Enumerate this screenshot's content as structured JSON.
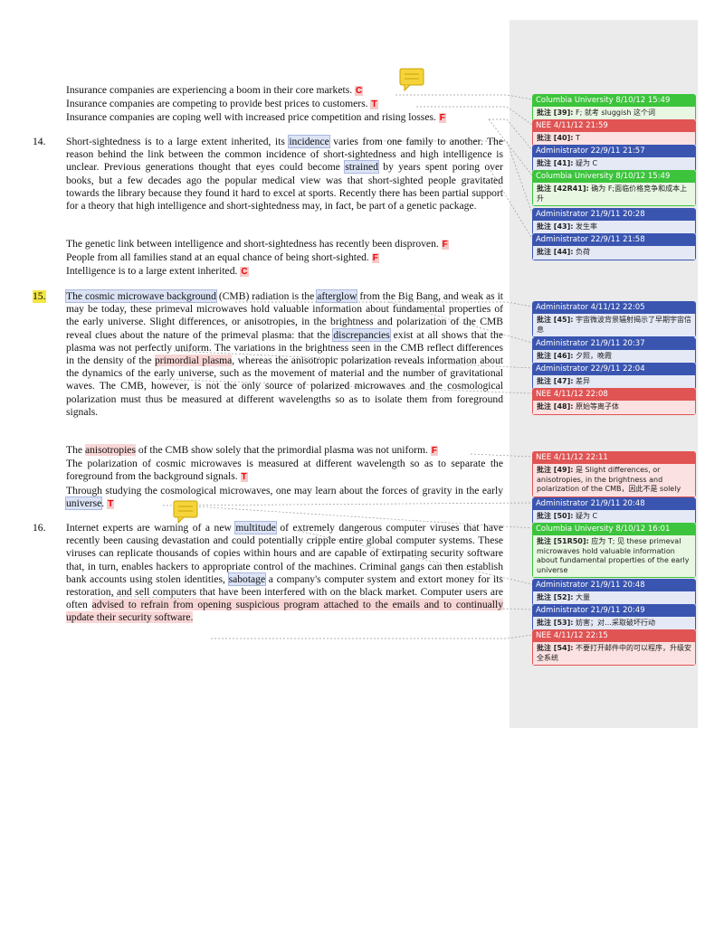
{
  "blocks": [
    {
      "options": [
        {
          "text": [
            "Insurance companies are experiencing a boom in their core markets."
          ],
          "mark": "C"
        },
        {
          "text": [
            "Insurance companies are competing to provide best prices to customers."
          ],
          "mark": "T"
        },
        {
          "text": [
            "Insurance companies are coping well with increased price competition and rising losses."
          ],
          "mark": "F"
        }
      ]
    },
    {
      "number": "14.",
      "passage": [
        "Short-sightedness is to a large extent inherited, its ",
        "incidence",
        " varies from one family to another. The reason behind the link between the common incidence of short-sightedness and high intelligence is unclear. Previous generations thought that eyes could become ",
        "strained",
        " by years spent poring over books, but a few decades ago the popular medical view was that short-sighted people gravitated towards the library because they found it hard to excel at sports. Recently there has been partial support for a theory that high intelligence and short-sightedness may, in fact, be part of a genetic package."
      ],
      "options": [
        {
          "text": [
            "The genetic link between intelligence and short-sightedness has recently been disproven."
          ],
          "mark": "F"
        },
        {
          "text": [
            "People from all families stand at an equal chance of being short-sighted."
          ],
          "mark": "F"
        },
        {
          "text": [
            "Intelligence is to a large extent inherited."
          ],
          "mark": "C"
        }
      ]
    },
    {
      "number": "15.",
      "passage": [
        "The cosmic microwave background",
        " (CMB) radiation is the ",
        "afterglow",
        " from the Big Bang, and weak as it may be today, these primeval microwaves hold valuable information about fundamental properties of the early universe. Slight differences, or anisotropies, in the brightness and polarization of the CMB reveal clues about the nature of the primeval plasma: that the ",
        "discrepancies",
        " exist at all shows that the plasma was not perfectly uniform. The variations in the brightness seen in the CMB reflect differences in the density of the ",
        "primordial plasma",
        ", whereas the anisotropic polarization reveals information about the dynamics of the early universe, such as the movement of material and the number of gravitational waves. The CMB, however, is not the only source of polarized microwaves and the cosmological polarization must thus be measured at different wavelengths so as to isolate them from foreground signals."
      ],
      "options": [
        {
          "text": [
            "The ",
            "anisotropies",
            " of the CMB show solely that the primordial plasma was not uniform."
          ],
          "mark": "F"
        },
        {
          "text": [
            "The polarization of cosmic microwaves is measured at different wavelength so as to separate the foreground from the background signals."
          ],
          "mark": "T"
        },
        {
          "text": [
            "Through studying the cosmological microwaves, one may learn about the forces of gravity in the early ",
            "universe",
            "."
          ],
          "mark": "T"
        }
      ]
    },
    {
      "number": "16.",
      "passage": [
        "Internet experts are warning of a new ",
        "multitude",
        " of extremely dangerous computer viruses that have recently been causing devastation and could potentially cripple entire global computer systems. These viruses can replicate thousands of copies within hours and are capable of extirpating security software that, in turn, enables hackers to appropriate control of the machines. Criminal gangs can then establish bank accounts using stolen identities, ",
        "sabotage",
        " a company's computer system and extort money for its restoration, and sell computers that have been interfered with on the black market. Computer users are often ",
        "advised to refrain from opening suspicious program attached to the emails and to continually update their security software."
      ]
    }
  ],
  "comments": [
    {
      "header": "Columbia University 8/10/12 15:49",
      "label": "批注 [39]:",
      "text": "F; 就考 sluggish 这个词"
    },
    {
      "header": "NEE 4/11/12 21:59",
      "label": "批注 [40]:",
      "text": "T"
    },
    {
      "header": "Administrator 22/9/11 21:57",
      "label": "批注 [41]:",
      "text": "疑为 C"
    },
    {
      "header": "Columbia University 8/10/12 15:49",
      "label": "批注 [42R41]:",
      "text": "确为 F;面临价格竞争和成本上升"
    },
    {
      "header": "Administrator 21/9/11 20:28",
      "label": "批注 [43]:",
      "text": "发生率"
    },
    {
      "header": "Administrator 22/9/11 21:58",
      "label": "批注 [44]:",
      "text": "负荷"
    },
    {
      "header": "Administrator 4/11/12 22:05",
      "label": "批注 [45]:",
      "text": "宇宙微波背景辐射揭示了早期宇宙信息"
    },
    {
      "header": "Administrator 21/9/11 20:37",
      "label": "批注 [46]:",
      "text": "夕照，晚霞"
    },
    {
      "header": "Administrator 22/9/11 22:04",
      "label": "批注 [47]:",
      "text": "差异"
    },
    {
      "header": "NEE 4/11/12 22:08",
      "label": "批注 [48]:",
      "text": "原始等离子体"
    },
    {
      "header": "NEE 4/11/12 22:11",
      "label": "批注 [49]:",
      "text": "是 Slight differences, or anisotropies, in the brightness and polarization of the CMB，因此不是 solely"
    },
    {
      "header": "Administrator 21/9/11 20:48",
      "label": "批注 [50]:",
      "text": "疑为 C"
    },
    {
      "header": "Columbia University 8/10/12 16:01",
      "label": "批注 [51R50]:",
      "text": "应为 T; 见 these primeval microwaves hold valuable information about fundamental properties of the early universe"
    },
    {
      "header": "Administrator 21/9/11 20:48",
      "label": "批注 [52]:",
      "text": "大量"
    },
    {
      "header": "Administrator 21/9/11 20:49",
      "label": "批注 [53]:",
      "text": "妨害；对…采取破坏行动"
    },
    {
      "header": "NEE 4/11/12 22:15",
      "label": "批注 [54]:",
      "text": "不要打开邮件中的可以程序，升级安全系统"
    }
  ]
}
